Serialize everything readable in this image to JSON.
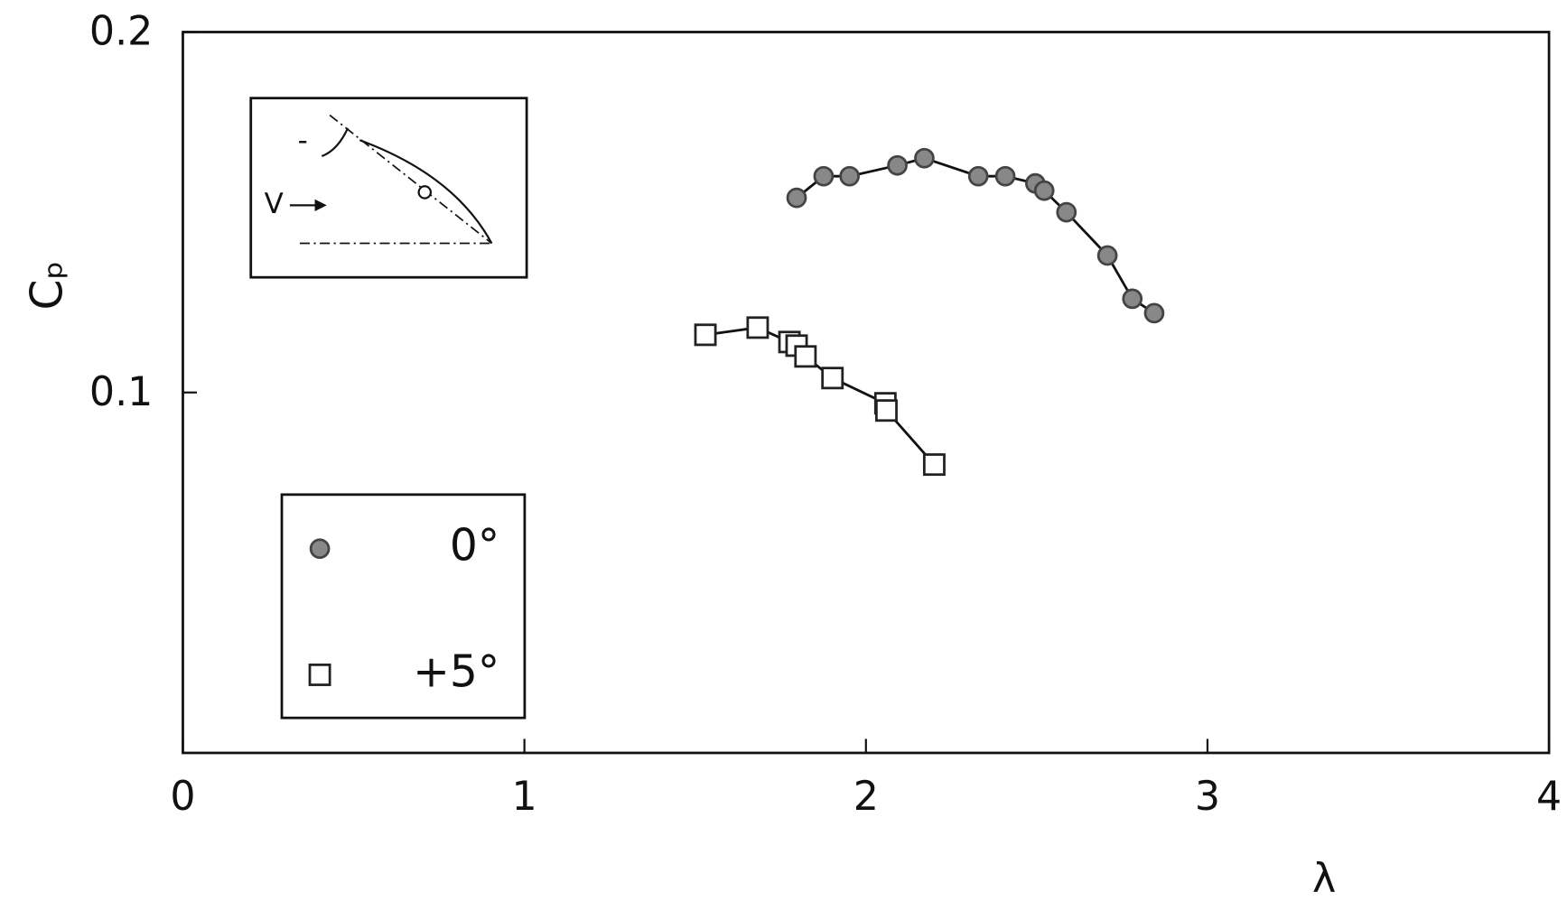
{
  "chart_data": {
    "type": "scatter",
    "x_label": "λ",
    "y_label": "Cₚ",
    "xlim": [
      0,
      4
    ],
    "xticks": [
      0,
      1,
      2,
      3,
      4
    ],
    "ylim": [
      0,
      0.2
    ],
    "yticks": [
      0.1,
      0.2
    ],
    "series": [
      {
        "name": "0°",
        "marker": "circle",
        "color": "#444444",
        "x": [
          1.797,
          1.876,
          1.952,
          2.092,
          2.171,
          2.329,
          2.408,
          2.496,
          2.522,
          2.587,
          2.707,
          2.78,
          2.844
        ],
        "values": [
          0.154,
          0.16,
          0.16,
          0.163,
          0.165,
          0.16,
          0.16,
          0.158,
          0.156,
          0.15,
          0.138,
          0.126,
          0.122
        ]
      },
      {
        "name": "+5°",
        "marker": "square",
        "color": "#222222",
        "x": [
          1.53,
          1.683,
          1.776,
          1.797,
          1.823,
          1.902,
          2.057,
          2.06,
          2.2
        ],
        "values": [
          0.116,
          0.118,
          0.114,
          0.113,
          0.11,
          0.104,
          0.097,
          0.095,
          0.08
        ]
      }
    ]
  },
  "inset": {
    "labels": [
      "V",
      "-"
    ]
  }
}
